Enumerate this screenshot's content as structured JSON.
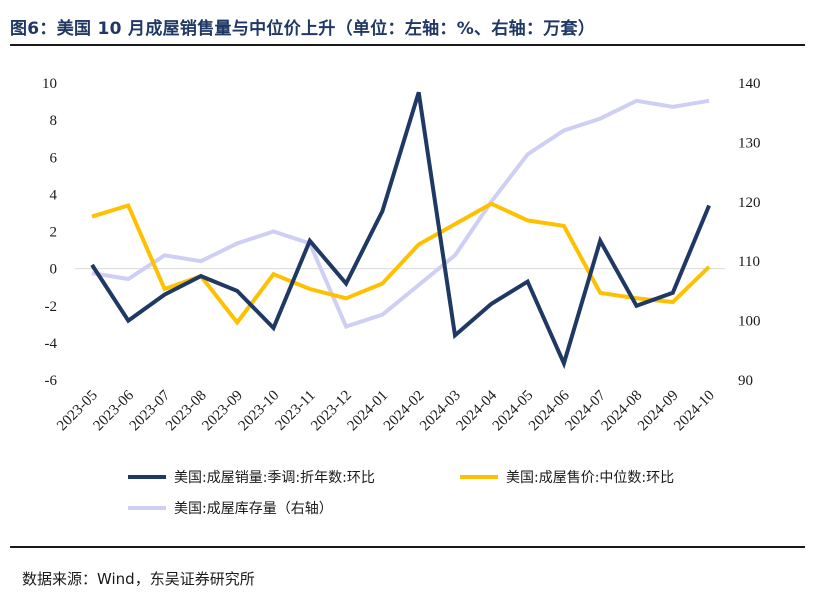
{
  "title": "图6：美国 10 月成屋销售量与中位价上升（单位：左轴：%、右轴：万套）",
  "source": "数据来源：Wind，东吴证券研究所",
  "chart_data": {
    "type": "line",
    "categories": [
      "2023-05",
      "2023-06",
      "2023-07",
      "2023-08",
      "2023-09",
      "2023-10",
      "2023-11",
      "2023-12",
      "2024-01",
      "2024-02",
      "2024-03",
      "2024-04",
      "2024-05",
      "2024-06",
      "2024-07",
      "2024-08",
      "2024-09",
      "2024-10"
    ],
    "left_axis": {
      "ylim": [
        -6,
        10
      ],
      "ticks": [
        "10",
        "8",
        "6",
        "4",
        "2",
        "0",
        "-2",
        "-4",
        "-6"
      ]
    },
    "right_axis": {
      "ylim": [
        90,
        140
      ],
      "ticks": [
        "140",
        "130",
        "120",
        "110",
        "100",
        "90"
      ]
    },
    "series": [
      {
        "name": "美国:成屋销量:季调:折年数:环比",
        "axis": "left",
        "color": "#1f3864",
        "values": [
          0.2,
          -2.8,
          -1.4,
          -0.4,
          -1.2,
          -3.2,
          1.5,
          -0.8,
          3.1,
          9.5,
          -3.6,
          -1.9,
          -0.7,
          -5.1,
          1.5,
          -2.0,
          -1.3,
          3.4
        ]
      },
      {
        "name": "美国:成屋售价:中位数:环比",
        "axis": "left",
        "color": "#ffc000",
        "values": [
          2.8,
          3.4,
          -1.1,
          -0.4,
          -2.9,
          -0.3,
          -1.1,
          -1.6,
          -0.8,
          1.3,
          2.4,
          3.5,
          2.6,
          2.3,
          -1.3,
          -1.6,
          -1.8,
          0.1
        ]
      },
      {
        "name": "美国:成屋库存量（右轴）",
        "axis": "right",
        "color": "#cfcff5",
        "values": [
          108,
          107,
          111,
          110,
          113,
          115,
          113,
          99,
          101,
          106,
          111,
          120,
          128,
          132,
          134,
          137,
          136,
          137
        ]
      }
    ],
    "legend_position": "bottom",
    "grid": false
  }
}
